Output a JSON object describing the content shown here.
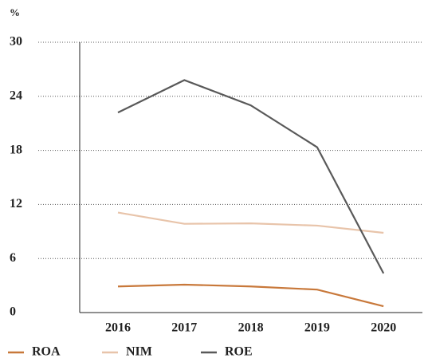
{
  "chart_data": {
    "type": "line",
    "y_label": "%",
    "categories": [
      "2016",
      "2017",
      "2018",
      "2019",
      "2020"
    ],
    "series": [
      {
        "name": "ROA",
        "color": "#c8783a",
        "values": [
          2.9,
          3.1,
          2.9,
          2.55,
          0.7
        ]
      },
      {
        "name": "NIM",
        "color": "#e8c4aa",
        "values": [
          11.1,
          9.85,
          9.9,
          9.65,
          8.85
        ]
      },
      {
        "name": "ROE",
        "color": "#595959",
        "values": [
          22.2,
          25.8,
          23.0,
          18.35,
          4.35
        ]
      }
    ],
    "ylim": [
      0,
      30
    ],
    "yticks": [
      0,
      6,
      12,
      18,
      24,
      30
    ],
    "grid": true,
    "legend": "bottom"
  }
}
